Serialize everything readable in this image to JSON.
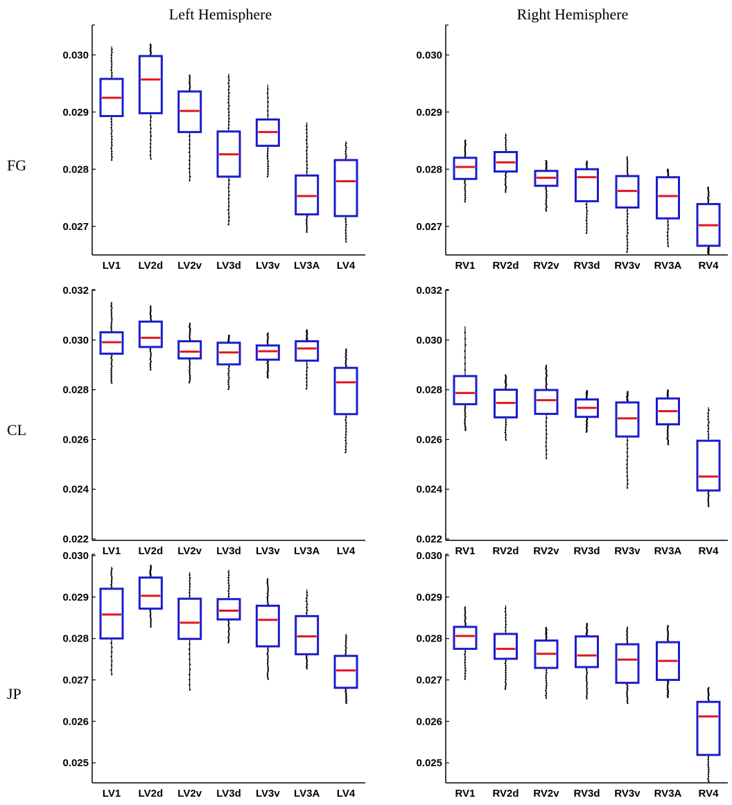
{
  "figure": {
    "col_titles": [
      "Left Hemisphere",
      "Right Hemisphere"
    ],
    "row_labels": [
      "FG",
      "CL",
      "JP"
    ]
  },
  "colors": {
    "box": "#1c1ccc",
    "median": "#e0141b",
    "whisker": "#000000",
    "outlier": "#000000"
  },
  "chart_data": [
    {
      "type": "box",
      "row": "FG",
      "hemisphere": "Left Hemisphere",
      "ylim": [
        0.0265,
        0.0305
      ],
      "yticks": [
        "0.027",
        "0.028",
        "0.029",
        "0.030"
      ],
      "categories": [
        "LV1",
        "LV2d",
        "LV2v",
        "LV3d",
        "LV3v",
        "LV3A",
        "LV4"
      ],
      "boxes": [
        {
          "q1": 0.02893,
          "median": 0.02925,
          "q3": 0.02958,
          "low": 0.02816,
          "high": 0.03015
        },
        {
          "q1": 0.02898,
          "median": 0.02957,
          "q3": 0.02998,
          "low": 0.02818,
          "high": 0.0302
        },
        {
          "q1": 0.02865,
          "median": 0.02902,
          "q3": 0.02936,
          "low": 0.0278,
          "high": 0.02966
        },
        {
          "q1": 0.02787,
          "median": 0.02826,
          "q3": 0.02866,
          "low": 0.02703,
          "high": 0.02967
        },
        {
          "q1": 0.02841,
          "median": 0.02865,
          "q3": 0.02887,
          "low": 0.02787,
          "high": 0.02948
        },
        {
          "q1": 0.02721,
          "median": 0.02753,
          "q3": 0.02789,
          "low": 0.0269,
          "high": 0.02882
        },
        {
          "q1": 0.02718,
          "median": 0.02779,
          "q3": 0.02816,
          "low": 0.02673,
          "high": 0.02849
        }
      ]
    },
    {
      "type": "box",
      "row": "FG",
      "hemisphere": "Right Hemisphere",
      "ylim": [
        0.0265,
        0.0305
      ],
      "yticks": [
        "0.027",
        "0.028",
        "0.029",
        "0.030"
      ],
      "categories": [
        "RV1",
        "RV2d",
        "RV2v",
        "RV3d",
        "RV3v",
        "RV3A",
        "RV4"
      ],
      "boxes": [
        {
          "q1": 0.02783,
          "median": 0.02804,
          "q3": 0.0282,
          "low": 0.02743,
          "high": 0.02852
        },
        {
          "q1": 0.02796,
          "median": 0.02812,
          "q3": 0.0283,
          "low": 0.0276,
          "high": 0.02863
        },
        {
          "q1": 0.02771,
          "median": 0.02785,
          "q3": 0.02797,
          "low": 0.02727,
          "high": 0.02816
        },
        {
          "q1": 0.02744,
          "median": 0.02786,
          "q3": 0.028,
          "low": 0.02688,
          "high": 0.02815
        },
        {
          "q1": 0.02733,
          "median": 0.02762,
          "q3": 0.02788,
          "low": 0.02655,
          "high": 0.02823
        },
        {
          "q1": 0.02714,
          "median": 0.02753,
          "q3": 0.02786,
          "low": 0.02665,
          "high": 0.02801
        },
        {
          "q1": 0.02666,
          "median": 0.02702,
          "q3": 0.02739,
          "low": 0.02652,
          "high": 0.0277
        }
      ]
    },
    {
      "type": "box",
      "row": "CL",
      "hemisphere": "Left Hemisphere",
      "ylim": [
        0.022,
        0.032
      ],
      "yticks": [
        "0.022",
        "0.024",
        "0.026",
        "0.028",
        "0.030",
        "0.032"
      ],
      "categories": [
        "LV1",
        "LV2d",
        "LV2v",
        "LV3d",
        "LV3v",
        "LV3A",
        "LV4"
      ],
      "boxes": [
        {
          "q1": 0.02945,
          "median": 0.02991,
          "q3": 0.03031,
          "low": 0.02827,
          "high": 0.03154
        },
        {
          "q1": 0.02972,
          "median": 0.03009,
          "q3": 0.03074,
          "low": 0.0288,
          "high": 0.0314
        },
        {
          "q1": 0.02926,
          "median": 0.02953,
          "q3": 0.02995,
          "low": 0.02829,
          "high": 0.0307
        },
        {
          "q1": 0.02902,
          "median": 0.0295,
          "q3": 0.02989,
          "low": 0.02802,
          "high": 0.03021
        },
        {
          "q1": 0.02921,
          "median": 0.02955,
          "q3": 0.02978,
          "low": 0.02848,
          "high": 0.03031
        },
        {
          "q1": 0.02917,
          "median": 0.02966,
          "q3": 0.02995,
          "low": 0.02804,
          "high": 0.03043
        },
        {
          "q1": 0.02702,
          "median": 0.0283,
          "q3": 0.02888,
          "low": 0.02548,
          "high": 0.02967
        }
      ]
    },
    {
      "type": "box",
      "row": "CL",
      "hemisphere": "Right Hemisphere",
      "ylim": [
        0.022,
        0.032
      ],
      "yticks": [
        "0.022",
        "0.024",
        "0.026",
        "0.028",
        "0.030",
        "0.032"
      ],
      "categories": [
        "RV1",
        "RV2d",
        "RV2v",
        "RV3d",
        "RV3v",
        "RV3A",
        "RV4"
      ],
      "boxes": [
        {
          "q1": 0.02742,
          "median": 0.02787,
          "q3": 0.02855,
          "low": 0.02637,
          "high": 0.03055
        },
        {
          "q1": 0.02689,
          "median": 0.02747,
          "q3": 0.028,
          "low": 0.02598,
          "high": 0.02862
        },
        {
          "q1": 0.02703,
          "median": 0.02758,
          "q3": 0.02799,
          "low": 0.02524,
          "high": 0.02901
        },
        {
          "q1": 0.02691,
          "median": 0.02727,
          "q3": 0.02761,
          "low": 0.0263,
          "high": 0.02799
        },
        {
          "q1": 0.02612,
          "median": 0.02685,
          "q3": 0.02749,
          "low": 0.02405,
          "high": 0.02795
        },
        {
          "q1": 0.02661,
          "median": 0.02714,
          "q3": 0.02765,
          "low": 0.0258,
          "high": 0.02801
        },
        {
          "q1": 0.02395,
          "median": 0.02451,
          "q3": 0.02595,
          "low": 0.02331,
          "high": 0.0273
        }
      ]
    },
    {
      "type": "box",
      "row": "JP",
      "hemisphere": "Left Hemisphere",
      "ylim": [
        0.0245,
        0.03
      ],
      "yticks": [
        "0.025",
        "0.026",
        "0.027",
        "0.028",
        "0.029",
        "0.030"
      ],
      "categories": [
        "LV1",
        "LV2d",
        "LV2v",
        "LV3d",
        "LV3v",
        "LV3A",
        "LV4"
      ],
      "boxes": [
        {
          "q1": 0.028,
          "median": 0.02858,
          "q3": 0.0292,
          "low": 0.02713,
          "high": 0.02973
        },
        {
          "q1": 0.02872,
          "median": 0.02903,
          "q3": 0.02947,
          "low": 0.02828,
          "high": 0.02978
        },
        {
          "q1": 0.02799,
          "median": 0.02838,
          "q3": 0.02896,
          "low": 0.02676,
          "high": 0.0296
        },
        {
          "q1": 0.02846,
          "median": 0.02867,
          "q3": 0.02895,
          "low": 0.0279,
          "high": 0.02966
        },
        {
          "q1": 0.02781,
          "median": 0.02845,
          "q3": 0.02879,
          "low": 0.02702,
          "high": 0.02946
        },
        {
          "q1": 0.02762,
          "median": 0.02805,
          "q3": 0.02854,
          "low": 0.02727,
          "high": 0.02918
        },
        {
          "q1": 0.02681,
          "median": 0.02723,
          "q3": 0.02758,
          "low": 0.02644,
          "high": 0.02811
        }
      ]
    },
    {
      "type": "box",
      "row": "JP",
      "hemisphere": "Right Hemisphere",
      "ylim": [
        0.0245,
        0.03
      ],
      "yticks": [
        "0.025",
        "0.026",
        "0.027",
        "0.028",
        "0.029",
        "0.030"
      ],
      "categories": [
        "RV1",
        "RV2d",
        "RV2v",
        "RV3d",
        "RV3v",
        "RV3A",
        "RV4"
      ],
      "boxes": [
        {
          "q1": 0.02775,
          "median": 0.02806,
          "q3": 0.02828,
          "low": 0.02702,
          "high": 0.02878
        },
        {
          "q1": 0.02751,
          "median": 0.02775,
          "q3": 0.02811,
          "low": 0.02678,
          "high": 0.0288
        },
        {
          "q1": 0.02729,
          "median": 0.02763,
          "q3": 0.02795,
          "low": 0.02656,
          "high": 0.02828
        },
        {
          "q1": 0.02731,
          "median": 0.02759,
          "q3": 0.02805,
          "low": 0.02655,
          "high": 0.02838
        },
        {
          "q1": 0.02693,
          "median": 0.02749,
          "q3": 0.02786,
          "low": 0.02644,
          "high": 0.02829
        },
        {
          "q1": 0.027,
          "median": 0.02746,
          "q3": 0.02791,
          "low": 0.02658,
          "high": 0.02833
        },
        {
          "q1": 0.02519,
          "median": 0.02612,
          "q3": 0.02647,
          "low": 0.02455,
          "high": 0.02683
        }
      ]
    }
  ]
}
